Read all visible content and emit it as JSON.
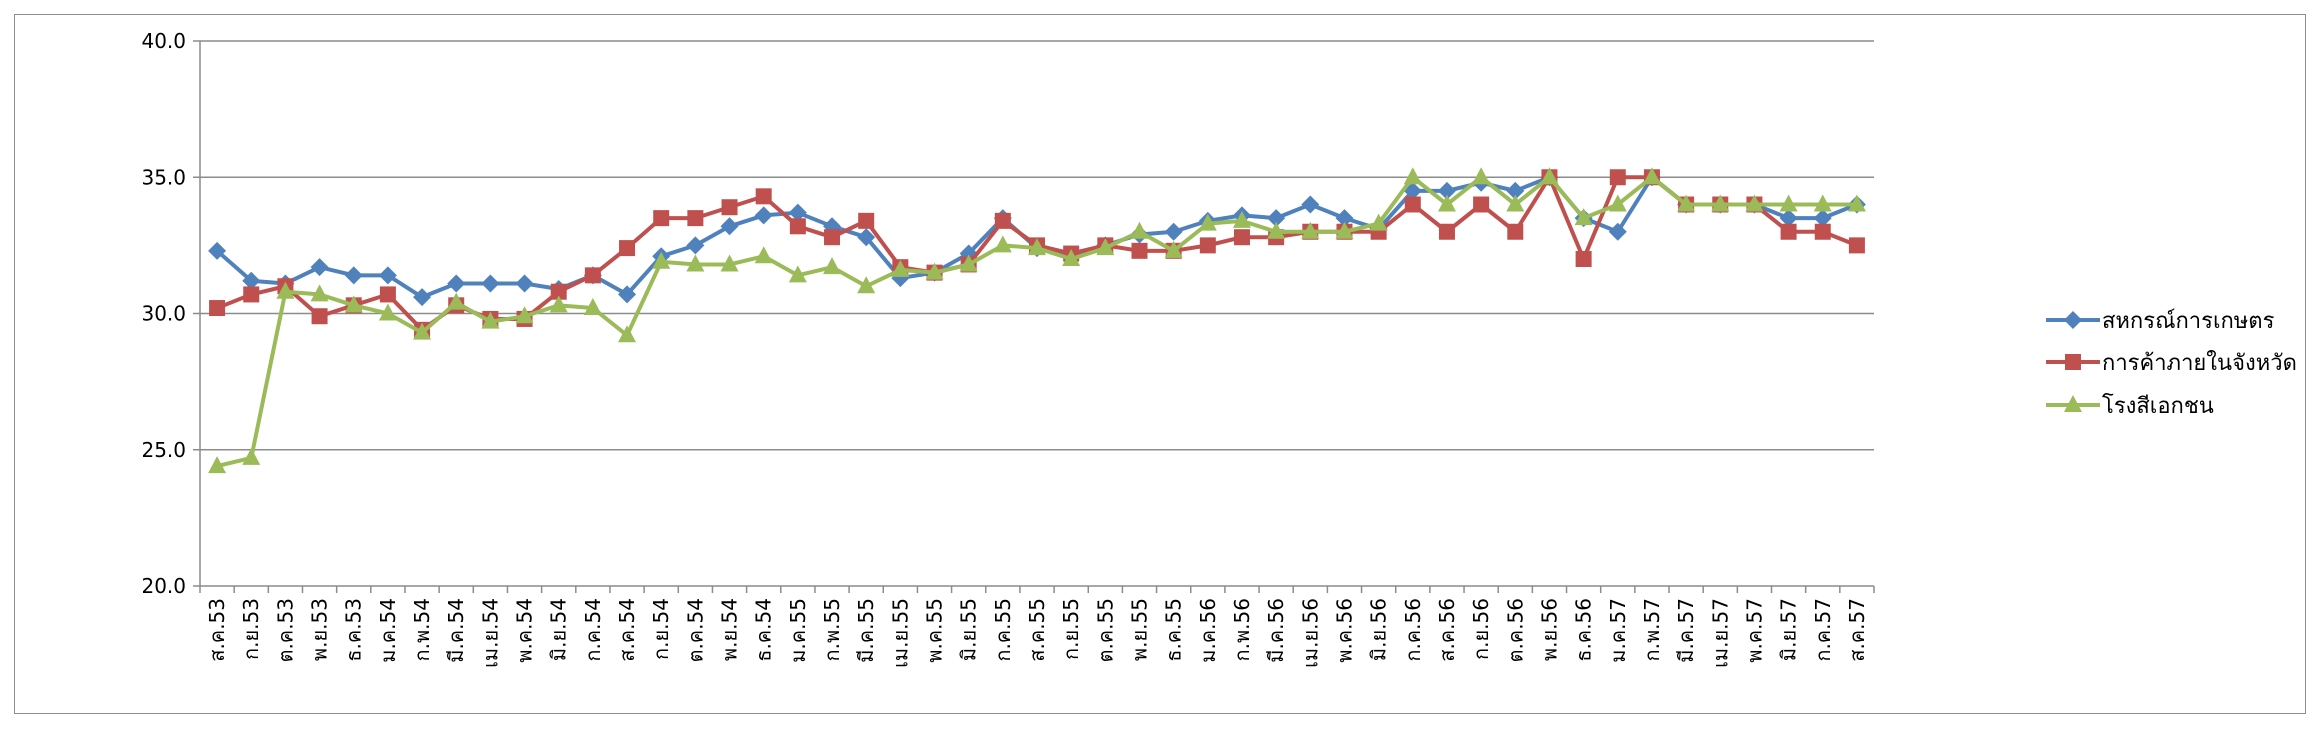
{
  "chart_data": {
    "type": "line",
    "title": "",
    "xlabel": "",
    "ylabel": "",
    "ylim": [
      20,
      40
    ],
    "yticks": [
      "20.0",
      "25.0",
      "30.0",
      "35.0",
      "40.0"
    ],
    "grid": true,
    "legend_position": "right",
    "categories": [
      "ส.ค.53",
      "ก.ย.53",
      "ต.ค.53",
      "พ.ย.53",
      "ธ.ค.53",
      "ม.ค.54",
      "ก.พ.54",
      "มี.ค.54",
      "เม.ย.54",
      "พ.ค.54",
      "มิ.ย.54",
      "ก.ค.54",
      "ส.ค.54",
      "ก.ย.54",
      "ต.ค.54",
      "พ.ย.54",
      "ธ.ค.54",
      "ม.ค.55",
      "ก.พ.55",
      "มี.ค.55",
      "เม.ย.55",
      "พ.ค.55",
      "มิ.ย.55",
      "ก.ค.55",
      "ส.ค.55",
      "ก.ย.55",
      "ต.ค.55",
      "พ.ย.55",
      "ธ.ค.55",
      "ม.ค.56",
      "ก.พ.56",
      "มี.ค.56",
      "เม.ย.56",
      "พ.ค.56",
      "มิ.ย.56",
      "ก.ค.56",
      "ส.ค.56",
      "ก.ย.56",
      "ต.ค.56",
      "พ.ย.56",
      "ธ.ค.56",
      "ม.ค.57",
      "ก.พ.57",
      "มี.ค.57",
      "เม.ย.57",
      "พ.ค.57",
      "มิ.ย.57",
      "ก.ค.57",
      "ส.ค.57"
    ],
    "series": [
      {
        "name": "สหกรณ์การเกษตร",
        "color": "#4f81bd",
        "marker": "diamond",
        "values": [
          32.3,
          31.2,
          31.1,
          31.7,
          31.4,
          31.4,
          30.6,
          31.1,
          31.1,
          31.1,
          30.9,
          31.4,
          30.7,
          32.1,
          32.5,
          33.2,
          33.6,
          33.7,
          33.2,
          32.8,
          31.3,
          31.5,
          32.2,
          33.5,
          32.4,
          32.1,
          32.5,
          32.9,
          33.0,
          33.4,
          33.6,
          33.5,
          34.0,
          33.5,
          33.1,
          34.5,
          34.5,
          34.8,
          34.5,
          35.0,
          33.5,
          33.0,
          35.0,
          34.0,
          34.0,
          34.0,
          33.5,
          33.5,
          34.0
        ]
      },
      {
        "name": "การค้าภายในจังหวัด",
        "color": "#c0504d",
        "marker": "square",
        "values": [
          30.2,
          30.7,
          31.0,
          29.9,
          30.3,
          30.7,
          29.4,
          30.3,
          29.8,
          29.8,
          30.8,
          31.4,
          32.4,
          33.5,
          33.5,
          33.9,
          34.3,
          33.2,
          32.8,
          33.4,
          31.7,
          31.5,
          31.8,
          33.4,
          32.5,
          32.2,
          32.5,
          32.3,
          32.3,
          32.5,
          32.8,
          32.8,
          33.0,
          33.0,
          33.0,
          34.0,
          33.0,
          34.0,
          33.0,
          35.0,
          32.0,
          35.0,
          35.0,
          34.0,
          34.0,
          34.0,
          33.0,
          33.0,
          32.5
        ]
      },
      {
        "name": "โรงสีเอกชน",
        "color": "#9bbb59",
        "marker": "triangle",
        "values": [
          24.4,
          24.7,
          30.8,
          30.7,
          30.3,
          30.0,
          29.3,
          30.4,
          29.7,
          29.9,
          30.3,
          30.2,
          29.2,
          31.9,
          31.8,
          31.8,
          32.1,
          31.4,
          31.7,
          31.0,
          31.6,
          31.5,
          31.8,
          32.5,
          32.4,
          32.0,
          32.4,
          33.0,
          32.3,
          33.3,
          33.4,
          33.0,
          33.0,
          33.0,
          33.3,
          35.0,
          34.0,
          35.0,
          34.0,
          35.0,
          33.5,
          34.0,
          35.0,
          34.0,
          34.0,
          34.0,
          34.0,
          34.0,
          34.0
        ]
      }
    ]
  }
}
